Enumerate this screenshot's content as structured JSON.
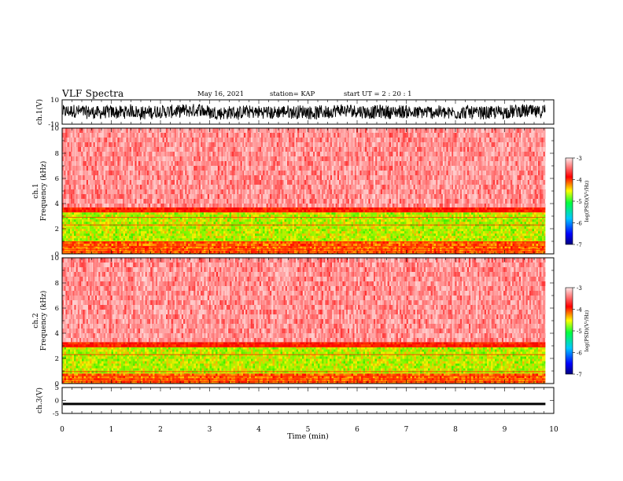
{
  "header": {
    "title": "VLF  Spectra",
    "date": "May 16, 2021",
    "station": "station= KAP",
    "start": "start  UT  =   2  : 20 : 1"
  },
  "colors": {
    "spectrogram_base": "#ff0000",
    "band_yellow": "#ffee00",
    "band_green": "#33ee00",
    "waveform": "#000000"
  },
  "chart_data": [
    {
      "type": "line",
      "panel": "ch1-waveform",
      "ylabel": "ch.1(V)",
      "ylim": [
        -10,
        10
      ],
      "yticks": [
        "10",
        "-10"
      ],
      "x_range_min": [
        0,
        9.83
      ],
      "description_series": "noisy broadband signal, roughly ±6 V"
    },
    {
      "type": "heatmap",
      "panel": "ch1-spectrogram",
      "ylabel": "ch.1\nFrequency  (kHz)",
      "ylim": [
        0,
        10
      ],
      "yticks": [
        "0",
        "2",
        "4",
        "6",
        "8",
        "10"
      ],
      "x_range_min": [
        0,
        9.83
      ],
      "bands": [
        {
          "from_khz": 0.0,
          "to_khz": 1.0,
          "level": "mixed-red-yellow"
        },
        {
          "from_khz": 1.0,
          "to_khz": 3.3,
          "level": "yellow-green"
        },
        {
          "from_khz": 3.3,
          "to_khz": 3.7,
          "level": "red"
        },
        {
          "from_khz": 3.7,
          "to_khz": 10.0,
          "level": "light-red"
        }
      ],
      "colorbar": {
        "label": "log(PSD)(V²/Hz)",
        "min": -7,
        "max": -3,
        "ticks": [
          "-3",
          "-4",
          "-5",
          "-6",
          "-7"
        ]
      }
    },
    {
      "type": "heatmap",
      "panel": "ch2-spectrogram",
      "ylabel": "ch.2\nFrequency  (kHz)",
      "ylim": [
        0,
        10
      ],
      "yticks": [
        "0",
        "2",
        "4",
        "6",
        "8",
        "10"
      ],
      "x_range_min": [
        0,
        9.83
      ],
      "bands": [
        {
          "from_khz": 0.0,
          "to_khz": 0.8,
          "level": "mixed-red-yellow"
        },
        {
          "from_khz": 0.8,
          "to_khz": 2.9,
          "level": "yellow-green"
        },
        {
          "from_khz": 2.9,
          "to_khz": 3.3,
          "level": "red"
        },
        {
          "from_khz": 3.3,
          "to_khz": 10.0,
          "level": "light-red"
        }
      ],
      "colorbar": {
        "label": "log(PSD)(V²/Hz)",
        "min": -7,
        "max": -3,
        "ticks": [
          "-3",
          "-4",
          "-5",
          "-6",
          "-7"
        ]
      }
    },
    {
      "type": "line",
      "panel": "ch3-waveform",
      "ylabel": "ch.3(V)",
      "ylim": [
        -5,
        5
      ],
      "yticks": [
        "5",
        "0",
        "-5"
      ],
      "x_range_min": [
        0,
        9.83
      ],
      "description_series": "thin band near -1.3 V"
    }
  ],
  "xaxis": {
    "label": "Time  (min)",
    "ticks": [
      "0",
      "1",
      "2",
      "3",
      "4",
      "5",
      "6",
      "7",
      "8",
      "9",
      "10"
    ],
    "range": [
      0,
      10
    ]
  }
}
